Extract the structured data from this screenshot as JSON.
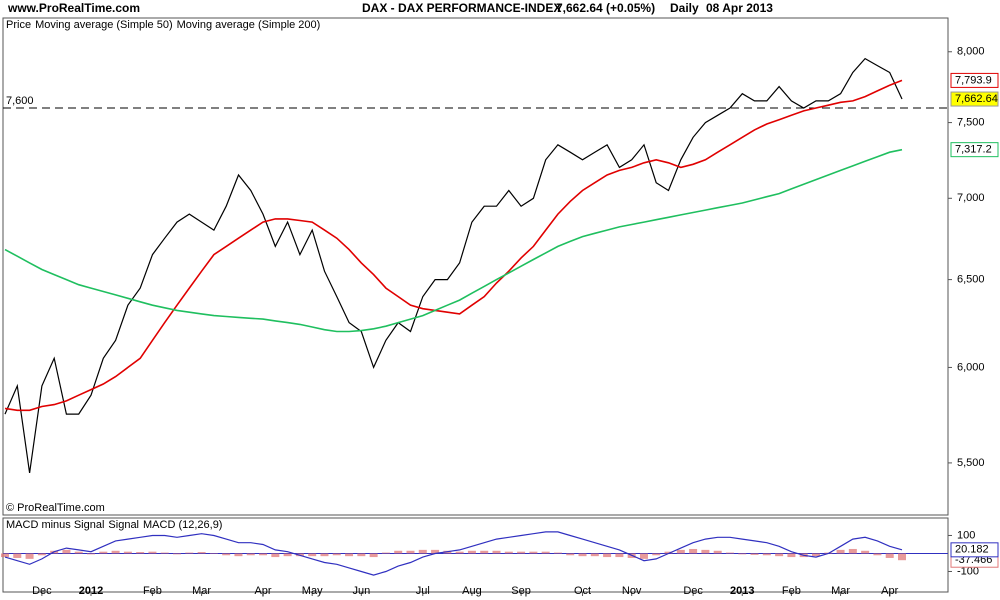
{
  "header": {
    "site": "www.ProRealTime.com",
    "instrument": "DAX - DAX PERFORMANCE-INDEX",
    "quote": "7,662.64 (+0.05%)",
    "period": "Daily",
    "date": "08 Apr 2013",
    "footer": "© ProRealTime.com"
  },
  "chart_data": [
    {
      "type": "line",
      "log_scale": true,
      "ylim": [
        5245,
        8250
      ],
      "yticks": [
        {
          "value": 5500,
          "label": "5,500"
        },
        {
          "value": 6000,
          "label": "6,000"
        },
        {
          "value": 6500,
          "label": "6,500"
        },
        {
          "value": 7000,
          "label": "7,000"
        },
        {
          "value": 7500,
          "label": "7,500"
        },
        {
          "value": 8000,
          "label": "8,000"
        }
      ],
      "hline": {
        "value": 7600,
        "label": "7,600"
      },
      "series": [
        {
          "name": "Price",
          "color": "#000000",
          "last_label": "7,662.64",
          "tag_fill": "#ffff00",
          "values": [
            5750,
            5900,
            5450,
            5900,
            6050,
            5750,
            5750,
            5850,
            6050,
            6150,
            6350,
            6450,
            6650,
            6750,
            6850,
            6900,
            6850,
            6800,
            6950,
            7150,
            7050,
            6900,
            6700,
            6850,
            6650,
            6800,
            6550,
            6400,
            6250,
            6200,
            6000,
            6150,
            6250,
            6200,
            6400,
            6500,
            6500,
            6600,
            6850,
            6950,
            6950,
            7050,
            6950,
            7000,
            7250,
            7350,
            7300,
            7250,
            7300,
            7350,
            7200,
            7250,
            7350,
            7100,
            7050,
            7250,
            7400,
            7500,
            7550,
            7600,
            7700,
            7650,
            7650,
            7750,
            7650,
            7600,
            7650,
            7650,
            7700,
            7850,
            7950,
            7900,
            7850,
            7662.64
          ]
        },
        {
          "name": "Moving average (Simple 50)",
          "color": "#e00000",
          "last_label": "7,793.9",
          "tag_fill": "#ffffff",
          "values": [
            5780,
            5770,
            5770,
            5790,
            5800,
            5820,
            5850,
            5880,
            5910,
            5950,
            6000,
            6050,
            6150,
            6250,
            6350,
            6450,
            6550,
            6650,
            6700,
            6750,
            6800,
            6850,
            6870,
            6870,
            6860,
            6850,
            6800,
            6750,
            6680,
            6600,
            6530,
            6450,
            6400,
            6350,
            6330,
            6320,
            6310,
            6300,
            6350,
            6400,
            6480,
            6550,
            6630,
            6700,
            6800,
            6900,
            6980,
            7050,
            7100,
            7150,
            7180,
            7200,
            7230,
            7250,
            7230,
            7200,
            7220,
            7250,
            7300,
            7350,
            7400,
            7450,
            7490,
            7520,
            7550,
            7580,
            7600,
            7620,
            7640,
            7650,
            7680,
            7720,
            7760,
            7793.9
          ]
        },
        {
          "name": "Moving average (Simple 200)",
          "color": "#1fbf5f",
          "last_label": "7,317.2",
          "tag_fill": "#ffffff",
          "values": [
            6680,
            6640,
            6600,
            6560,
            6530,
            6500,
            6470,
            6450,
            6430,
            6410,
            6390,
            6370,
            6350,
            6335,
            6320,
            6310,
            6300,
            6290,
            6285,
            6280,
            6275,
            6270,
            6260,
            6250,
            6240,
            6225,
            6210,
            6200,
            6200,
            6205,
            6215,
            6230,
            6250,
            6270,
            6290,
            6320,
            6350,
            6380,
            6420,
            6460,
            6500,
            6540,
            6580,
            6620,
            6660,
            6700,
            6730,
            6760,
            6780,
            6800,
            6820,
            6835,
            6850,
            6865,
            6880,
            6895,
            6910,
            6925,
            6940,
            6955,
            6970,
            6990,
            7010,
            7030,
            7060,
            7090,
            7120,
            7150,
            7180,
            7210,
            7240,
            7270,
            7300,
            7317.2
          ]
        }
      ]
    },
    {
      "type": "line",
      "ylim": [
        -214,
        197
      ],
      "yticks": [
        -100,
        100
      ],
      "signal_label": "Signal",
      "categories": [
        null,
        null,
        null,
        "Dec",
        null,
        null,
        null,
        "2012",
        null,
        null,
        null,
        null,
        "Feb",
        null,
        null,
        null,
        "Mar",
        null,
        null,
        null,
        null,
        "Apr",
        null,
        null,
        null,
        "May",
        null,
        null,
        null,
        "Jun",
        null,
        null,
        null,
        null,
        "Jul",
        null,
        null,
        null,
        "Aug",
        null,
        null,
        null,
        "Sep",
        null,
        null,
        null,
        null,
        "Oct",
        null,
        null,
        null,
        "Nov",
        null,
        null,
        null,
        null,
        "Dec",
        null,
        null,
        null,
        "2013",
        null,
        null,
        null,
        "Feb",
        null,
        null,
        null,
        "Mar",
        null,
        null,
        null,
        "Apr",
        null
      ],
      "series": [
        {
          "name": "MACD minus Signal",
          "kind": "bar",
          "color": "#e07878",
          "last_label": "-37.466",
          "values": [
            -20,
            -25,
            -30,
            -10,
            15,
            20,
            10,
            -5,
            10,
            15,
            10,
            8,
            10,
            5,
            -5,
            5,
            8,
            0,
            -10,
            -15,
            -10,
            -10,
            -20,
            -15,
            -15,
            -15,
            -15,
            -10,
            -15,
            -15,
            -20,
            5,
            15,
            15,
            20,
            20,
            15,
            10,
            15,
            15,
            15,
            10,
            10,
            10,
            10,
            5,
            -10,
            -15,
            -15,
            -20,
            -20,
            -25,
            -30,
            -10,
            10,
            20,
            25,
            20,
            15,
            5,
            -5,
            -8,
            -10,
            -15,
            -20,
            -20,
            -15,
            5,
            20,
            25,
            15,
            -10,
            -25,
            -37.466
          ]
        },
        {
          "name": "MACD (12,26,9)",
          "kind": "line",
          "color": "#3030c0",
          "last_label": "20.182",
          "values": [
            -20,
            -40,
            -60,
            -30,
            10,
            30,
            20,
            10,
            40,
            70,
            80,
            90,
            100,
            100,
            90,
            100,
            110,
            100,
            80,
            60,
            60,
            50,
            20,
            10,
            -10,
            -30,
            -50,
            -60,
            -80,
            -100,
            -120,
            -100,
            -70,
            -50,
            -20,
            0,
            10,
            20,
            40,
            60,
            80,
            90,
            100,
            110,
            120,
            120,
            100,
            80,
            60,
            40,
            20,
            -10,
            -40,
            -30,
            0,
            30,
            60,
            80,
            90,
            90,
            80,
            70,
            60,
            40,
            10,
            -10,
            -20,
            0,
            40,
            80,
            90,
            70,
            40,
            20.182
          ]
        }
      ]
    }
  ]
}
